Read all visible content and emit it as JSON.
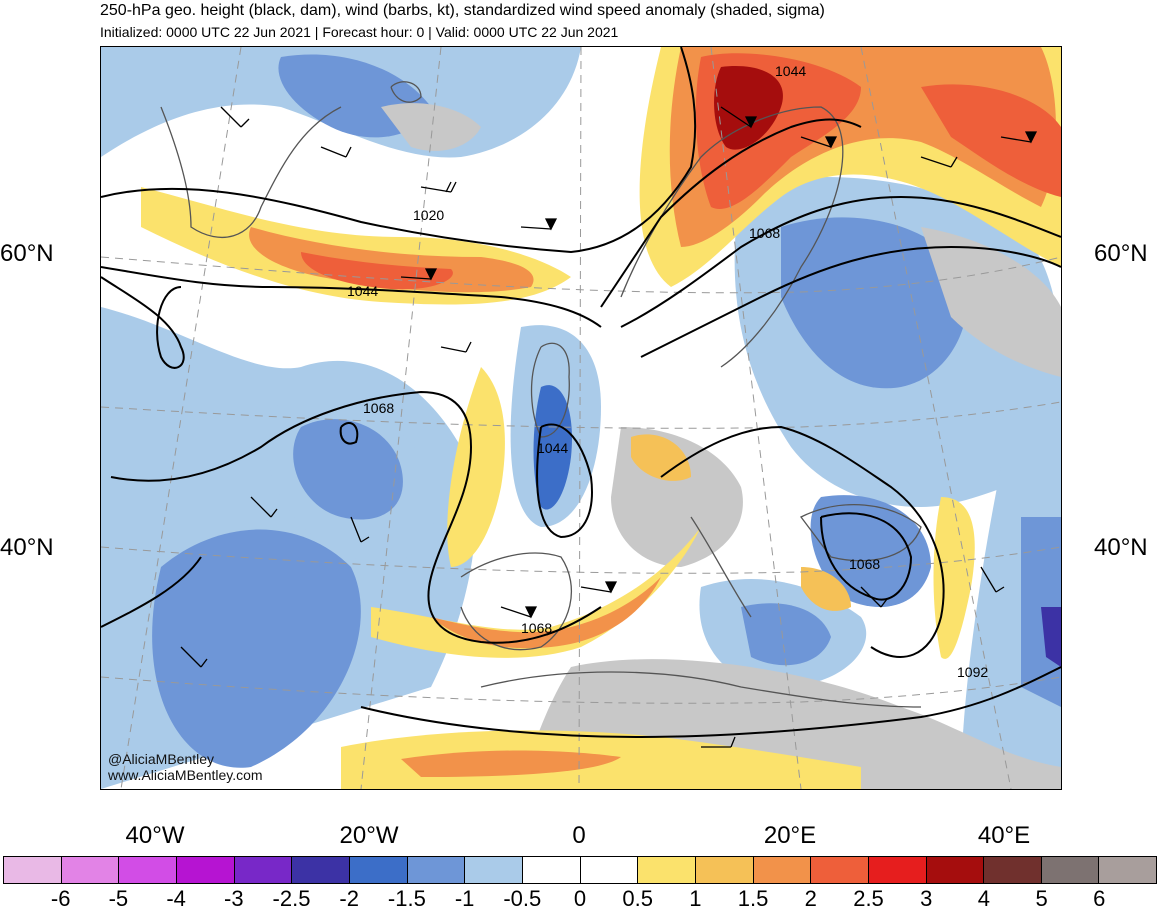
{
  "header": {
    "title": "250-hPa geo. height (black, dam), wind (barbs, kt), standardized wind speed anomaly (shaded, sigma)",
    "subtitle": "Initialized: 0000 UTC 22 Jun 2021 | Forecast hour: 0 | Valid: 0000 UTC 22 Jun 2021"
  },
  "axes": {
    "lat_left": [
      "60°N",
      "40°N"
    ],
    "lat_right": [
      "60°N",
      "40°N"
    ],
    "lon_bottom": [
      "40°W",
      "20°W",
      "0",
      "20°E",
      "40°E"
    ]
  },
  "contour_labels": [
    "1020",
    "1044",
    "1068",
    "1068",
    "1044",
    "1044",
    "1068",
    "1068",
    "1092"
  ],
  "credits": {
    "handle": "@AliciaMBentley",
    "website": "www.AliciaMBentley.com"
  },
  "colorbar": {
    "labels": [
      "-6",
      "-5",
      "-4",
      "-3",
      "-2.5",
      "-2",
      "-1.5",
      "-1",
      "-0.5",
      "0",
      "0.5",
      "1",
      "1.5",
      "2",
      "2.5",
      "3",
      "4",
      "5",
      "6"
    ],
    "colors": [
      "#e9b9e6",
      "#e283e6",
      "#d24de6",
      "#b614d2",
      "#7828c8",
      "#3c32a5",
      "#3c6ec8",
      "#6e96d7",
      "#aacbe9",
      "#ffffff",
      "#ffffff",
      "#fbe26c",
      "#f5c157",
      "#f2924a",
      "#ee5f3a",
      "#e61e1e",
      "#a50d0d",
      "#70302d",
      "#7d7271",
      "#a89e9c"
    ]
  },
  "map": {
    "shading_colors": {
      "neg_light": "#aacbe9",
      "neg_mid": "#6e96d7",
      "neg_strong": "#3c6ec8",
      "neg_extreme": "#3c32a5",
      "pos_light": "#fbe26c",
      "pos_mid": "#f5c157",
      "pos_orange": "#f2924a",
      "pos_red": "#ee5f3a",
      "pos_dark": "#a50d0d",
      "land_gray": "#c8c8c8"
    }
  }
}
